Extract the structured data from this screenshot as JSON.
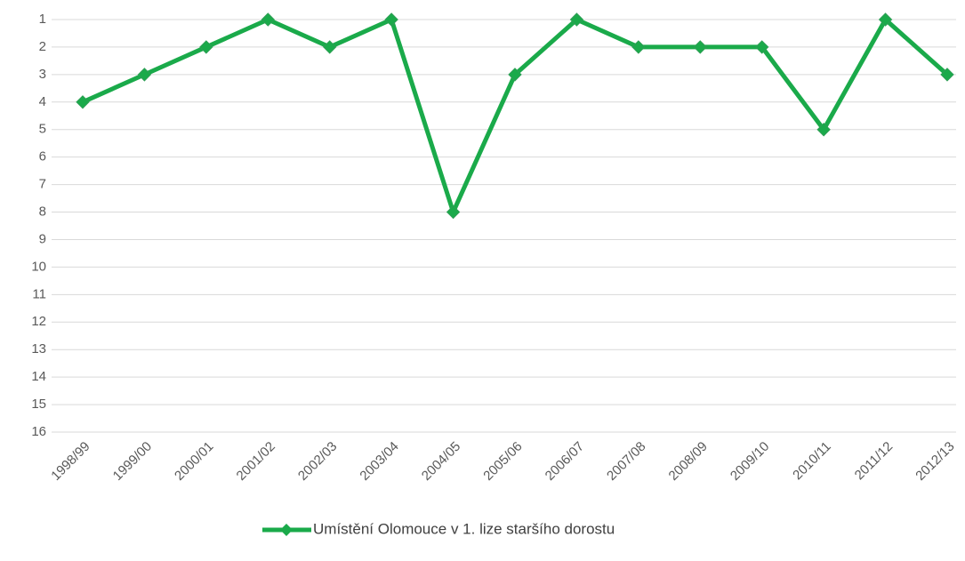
{
  "chart_data": {
    "type": "line",
    "categories": [
      "1998/99",
      "1999/00",
      "2000/01",
      "2001/02",
      "2002/03",
      "2003/04",
      "2004/05",
      "2005/06",
      "2006/07",
      "2007/08",
      "2008/09",
      "2009/10",
      "2010/11",
      "2011/12",
      "2012/13"
    ],
    "series": [
      {
        "name": "Umístění Olomouce v 1. lize staršího dorostu",
        "color": "#1aaa4a",
        "values": [
          4,
          3,
          2,
          1,
          2,
          1,
          8,
          3,
          1,
          2,
          2,
          2,
          5,
          1,
          3
        ]
      }
    ],
    "ylim": [
      1,
      16
    ],
    "y_reversed": true,
    "yticks": [
      1,
      2,
      3,
      4,
      5,
      6,
      7,
      8,
      9,
      10,
      11,
      12,
      13,
      14,
      15,
      16
    ],
    "grid": true,
    "legend": "bottom"
  }
}
